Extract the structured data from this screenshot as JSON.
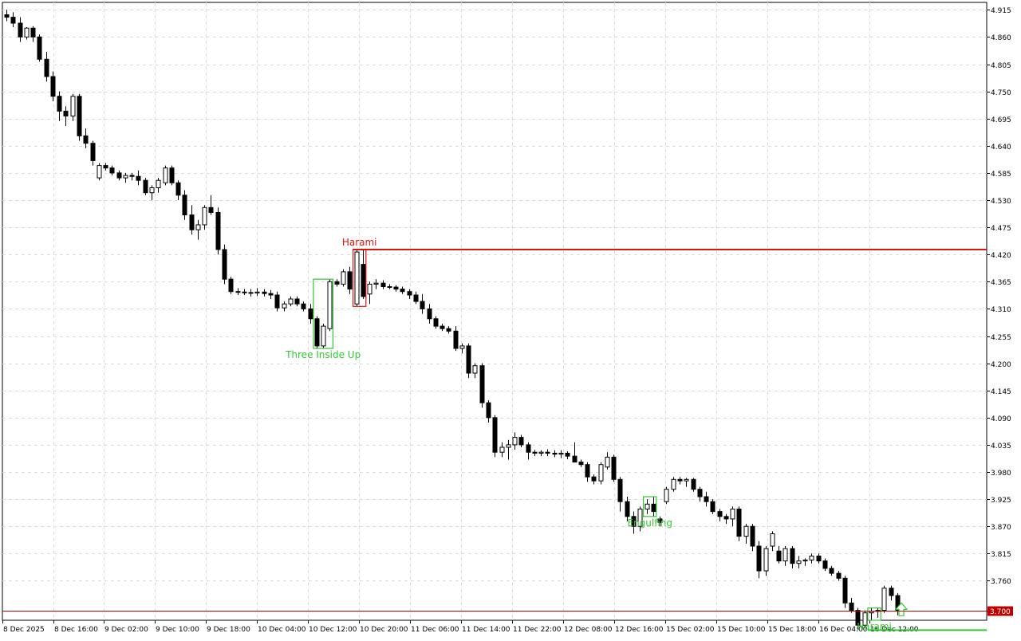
{
  "chart_data": {
    "type": "candlestick",
    "title": "",
    "y_ticks": [
      "4.915",
      "4.860",
      "4.805",
      "4.750",
      "4.695",
      "4.640",
      "4.585",
      "4.530",
      "4.475",
      "4.420",
      "4.365",
      "4.310",
      "4.255",
      "4.200",
      "4.145",
      "4.090",
      "4.035",
      "3.980",
      "3.925",
      "3.870",
      "3.815",
      "3.760",
      "3.700"
    ],
    "ylim": [
      3.68,
      4.93
    ],
    "x_ticks": [
      "8 Dec 2025",
      "8 Dec 16:00",
      "9 Dec 02:00",
      "9 Dec 10:00",
      "9 Dec 18:00",
      "10 Dec 04:00",
      "10 Dec 12:00",
      "10 Dec 20:00",
      "11 Dec 06:00",
      "11 Dec 14:00",
      "11 Dec 22:00",
      "12 Dec 08:00",
      "12 Dec 16:00",
      "15 Dec 02:00",
      "15 Dec 10:00",
      "15 Dec 18:00",
      "16 Dec 04:00",
      "16 Dec 12:00"
    ],
    "current_price": "3.700",
    "grid": true,
    "colors": {
      "candle": "#000000",
      "bullish_pattern": "#32c832",
      "bearish_pattern": "#e01010",
      "current_price_line": "#c00000",
      "current_price_label_bg": "#c00000",
      "grid": "#dcdcdc"
    },
    "candles": [
      [
        4.905,
        4.915,
        4.892,
        4.9
      ],
      [
        4.9,
        4.91,
        4.88,
        4.888
      ],
      [
        4.888,
        4.9,
        4.85,
        4.86
      ],
      [
        4.86,
        4.88,
        4.855,
        4.878
      ],
      [
        4.878,
        4.882,
        4.85,
        4.86
      ],
      [
        4.86,
        4.865,
        4.81,
        4.815
      ],
      [
        4.815,
        4.83,
        4.77,
        4.78
      ],
      [
        4.78,
        4.79,
        4.73,
        4.74
      ],
      [
        4.74,
        4.75,
        4.69,
        4.71
      ],
      [
        4.71,
        4.72,
        4.68,
        4.7
      ],
      [
        4.7,
        4.745,
        4.69,
        4.74
      ],
      [
        4.74,
        4.745,
        4.65,
        4.66
      ],
      [
        4.66,
        4.675,
        4.635,
        4.645
      ],
      [
        4.645,
        4.65,
        4.6,
        4.61
      ],
      [
        4.575,
        4.605,
        4.57,
        4.6
      ],
      [
        4.6,
        4.605,
        4.59,
        4.595
      ],
      [
        4.595,
        4.6,
        4.58,
        4.585
      ],
      [
        4.585,
        4.59,
        4.57,
        4.575
      ],
      [
        4.575,
        4.585,
        4.565,
        4.58
      ],
      [
        4.58,
        4.585,
        4.57,
        4.578
      ],
      [
        4.578,
        4.59,
        4.56,
        4.57
      ],
      [
        4.57,
        4.575,
        4.54,
        4.545
      ],
      [
        4.545,
        4.56,
        4.53,
        4.555
      ],
      [
        4.555,
        4.575,
        4.545,
        4.57
      ],
      [
        4.565,
        4.6,
        4.56,
        4.595
      ],
      [
        4.595,
        4.6,
        4.56,
        4.565
      ],
      [
        4.565,
        4.57,
        4.53,
        4.54
      ],
      [
        4.54,
        4.55,
        4.49,
        4.5
      ],
      [
        4.5,
        4.52,
        4.46,
        4.47
      ],
      [
        4.47,
        4.49,
        4.45,
        4.48
      ],
      [
        4.48,
        4.52,
        4.47,
        4.515
      ],
      [
        4.515,
        4.54,
        4.5,
        4.505
      ],
      [
        4.505,
        4.515,
        4.42,
        4.43
      ],
      [
        4.43,
        4.44,
        4.36,
        4.37
      ],
      [
        4.37,
        4.375,
        4.34,
        4.345
      ],
      [
        4.345,
        4.352,
        4.338,
        4.344
      ],
      [
        4.344,
        4.35,
        4.338,
        4.343
      ],
      [
        4.343,
        4.35,
        4.335,
        4.342
      ],
      [
        4.342,
        4.352,
        4.336,
        4.344
      ],
      [
        4.344,
        4.35,
        4.335,
        4.341
      ],
      [
        4.341,
        4.348,
        4.33,
        4.338
      ],
      [
        4.338,
        4.345,
        4.305,
        4.312
      ],
      [
        4.312,
        4.325,
        4.305,
        4.32
      ],
      [
        4.32,
        4.335,
        4.315,
        4.33
      ],
      [
        4.33,
        4.335,
        4.315,
        4.32
      ],
      [
        4.32,
        4.325,
        4.305,
        4.31
      ],
      [
        4.31,
        4.32,
        4.28,
        4.29
      ],
      [
        4.29,
        4.295,
        4.23,
        4.235
      ],
      [
        4.235,
        4.28,
        4.23,
        4.275
      ],
      [
        4.27,
        4.37,
        4.265,
        4.365
      ],
      [
        4.365,
        4.37,
        4.355,
        4.36
      ],
      [
        4.36,
        4.39,
        4.355,
        4.385
      ],
      [
        4.385,
        4.395,
        4.34,
        4.35
      ],
      [
        4.32,
        4.43,
        4.315,
        4.425
      ],
      [
        4.4,
        4.43,
        4.33,
        4.335
      ],
      [
        4.34,
        4.365,
        4.32,
        4.36
      ],
      [
        4.36,
        4.37,
        4.35,
        4.362
      ],
      [
        4.362,
        4.368,
        4.35,
        4.355
      ],
      [
        4.355,
        4.36,
        4.35,
        4.354
      ],
      [
        4.354,
        4.358,
        4.345,
        4.35
      ],
      [
        4.35,
        4.355,
        4.34,
        4.345
      ],
      [
        4.345,
        4.35,
        4.33,
        4.338
      ],
      [
        4.338,
        4.345,
        4.32,
        4.325
      ],
      [
        4.325,
        4.34,
        4.3,
        4.31
      ],
      [
        4.31,
        4.32,
        4.28,
        4.29
      ],
      [
        4.29,
        4.295,
        4.27,
        4.275
      ],
      [
        4.275,
        4.28,
        4.265,
        4.27
      ],
      [
        4.27,
        4.275,
        4.26,
        4.265
      ],
      [
        4.265,
        4.275,
        4.225,
        4.23
      ],
      [
        4.23,
        4.24,
        4.22,
        4.235
      ],
      [
        4.235,
        4.24,
        4.17,
        4.18
      ],
      [
        4.18,
        4.2,
        4.17,
        4.195
      ],
      [
        4.195,
        4.2,
        4.11,
        4.12
      ],
      [
        4.12,
        4.125,
        4.08,
        4.09
      ],
      [
        4.09,
        4.095,
        4.01,
        4.02
      ],
      [
        4.02,
        4.04,
        4.01,
        4.03
      ],
      [
        4.03,
        4.045,
        4.005,
        4.035
      ],
      [
        4.035,
        4.06,
        4.025,
        4.05
      ],
      [
        4.05,
        4.055,
        4.03,
        4.035
      ],
      [
        4.035,
        4.04,
        4.005,
        4.02
      ],
      [
        4.02,
        4.025,
        4.012,
        4.018
      ],
      [
        4.018,
        4.024,
        4.012,
        4.02
      ],
      [
        4.02,
        4.026,
        4.012,
        4.018
      ],
      [
        4.018,
        4.024,
        4.01,
        4.016
      ],
      [
        4.016,
        4.024,
        4.008,
        4.018
      ],
      [
        4.018,
        4.022,
        4.006,
        4.012
      ],
      [
        4.012,
        4.04,
        4.0,
        4.0
      ],
      [
        4.0,
        4.005,
        3.99,
        3.995
      ],
      [
        3.995,
        4.0,
        3.96,
        3.97
      ],
      [
        3.97,
        3.975,
        3.955,
        3.962
      ],
      [
        3.962,
        4.0,
        3.955,
        3.995
      ],
      [
        3.99,
        4.02,
        3.985,
        4.01
      ],
      [
        4.01,
        4.015,
        3.96,
        3.965
      ],
      [
        3.965,
        3.97,
        3.9,
        3.92
      ],
      [
        3.92,
        3.93,
        3.88,
        3.89
      ],
      [
        3.89,
        3.9,
        3.855,
        3.87
      ],
      [
        3.87,
        3.91,
        3.86,
        3.905
      ],
      [
        3.905,
        3.925,
        3.895,
        3.915
      ],
      [
        3.915,
        3.93,
        3.89,
        3.9
      ],
      [
        3.885,
        3.89,
        3.87,
        3.878
      ],
      [
        3.92,
        3.95,
        3.915,
        3.945
      ],
      [
        3.945,
        3.97,
        3.94,
        3.965
      ],
      [
        3.965,
        3.97,
        3.955,
        3.962
      ],
      [
        3.962,
        3.968,
        3.95,
        3.965
      ],
      [
        3.965,
        3.968,
        3.94,
        3.945
      ],
      [
        3.945,
        3.95,
        3.92,
        3.93
      ],
      [
        3.93,
        3.94,
        3.91,
        3.92
      ],
      [
        3.92,
        3.925,
        3.895,
        3.9
      ],
      [
        3.9,
        3.905,
        3.88,
        3.89
      ],
      [
        3.89,
        3.895,
        3.875,
        3.885
      ],
      [
        3.885,
        3.91,
        3.87,
        3.905
      ],
      [
        3.905,
        3.91,
        3.84,
        3.85
      ],
      [
        3.85,
        3.875,
        3.835,
        3.87
      ],
      [
        3.87,
        3.875,
        3.82,
        3.83
      ],
      [
        3.83,
        3.84,
        3.765,
        3.78
      ],
      [
        3.78,
        3.83,
        3.77,
        3.825
      ],
      [
        3.83,
        3.86,
        3.82,
        3.855
      ],
      [
        3.82,
        3.83,
        3.795,
        3.8
      ],
      [
        3.8,
        3.83,
        3.79,
        3.825
      ],
      [
        3.825,
        3.83,
        3.785,
        3.795
      ],
      [
        3.795,
        3.81,
        3.785,
        3.8
      ],
      [
        3.8,
        3.805,
        3.79,
        3.802
      ],
      [
        3.802,
        3.815,
        3.795,
        3.81
      ],
      [
        3.81,
        3.815,
        3.795,
        3.8
      ],
      [
        3.8,
        3.805,
        3.78,
        3.785
      ],
      [
        3.785,
        3.79,
        3.77,
        3.775
      ],
      [
        3.775,
        3.78,
        3.76,
        3.765
      ],
      [
        3.765,
        3.77,
        3.705,
        3.715
      ],
      [
        3.715,
        3.725,
        3.695,
        3.7
      ],
      [
        3.7,
        3.705,
        3.66,
        3.67
      ],
      [
        3.67,
        3.7,
        3.665,
        3.695
      ],
      [
        3.695,
        3.705,
        3.68,
        3.698
      ],
      [
        3.698,
        3.705,
        3.685,
        3.7
      ],
      [
        3.7,
        3.75,
        3.695,
        3.745
      ],
      [
        3.745,
        3.75,
        3.72,
        3.73
      ],
      [
        3.73,
        3.735,
        3.69,
        3.7
      ]
    ],
    "annotations": [
      {
        "label": "Harami",
        "kind": "bearish",
        "candle_span": [
          53,
          54
        ],
        "level": 4.43
      },
      {
        "label": "Three Inside Up",
        "kind": "bullish",
        "candle_span": [
          47,
          49
        ]
      },
      {
        "label": "Engulfing",
        "kind": "bullish",
        "candle_span": [
          97,
          98
        ]
      },
      {
        "label": "Harami",
        "kind": "bullish",
        "candle_span": [
          131,
          132
        ],
        "level": 3.66
      }
    ]
  }
}
